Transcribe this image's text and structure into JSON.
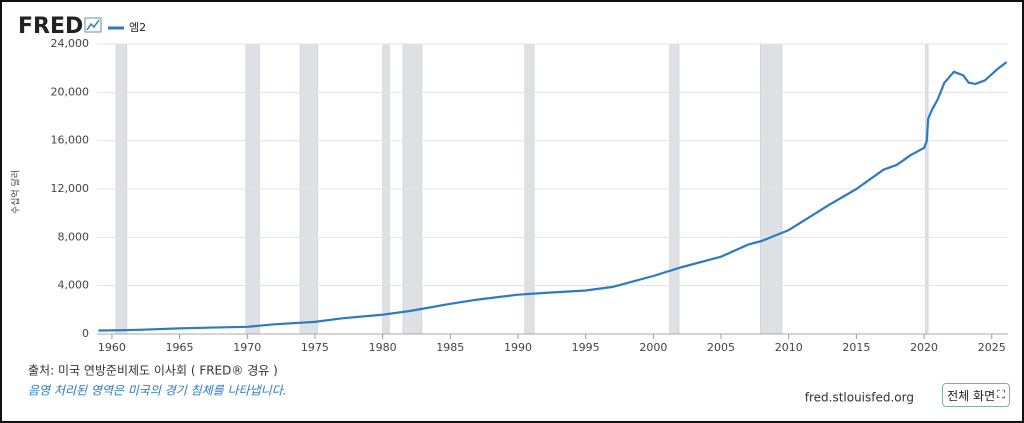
{
  "header": {
    "logo": "FRED"
  },
  "chart_data": {
    "type": "line",
    "y_label": "수십억 달러",
    "x": [
      1959,
      1960,
      1962,
      1965,
      1967,
      1970,
      1972,
      1975,
      1977,
      1980,
      1982,
      1985,
      1987,
      1990,
      1992,
      1995,
      1997,
      2000,
      2002,
      2005,
      2007,
      2008,
      2010,
      2012,
      2013,
      2015,
      2017,
      2018,
      2019,
      2020,
      2020.2,
      2020.3,
      2020.6,
      2021,
      2021.5,
      2022.2,
      2022.9,
      2023.3,
      2023.8,
      2024.5,
      2025,
      2025.5,
      2026.1
    ],
    "series": [
      {
        "name": "엠2",
        "color": "#2b7bc4",
        "values": [
          287,
          300,
          350,
          460,
          520,
          600,
          800,
          1000,
          1300,
          1600,
          1900,
          2500,
          2850,
          3250,
          3400,
          3600,
          3900,
          4800,
          5500,
          6400,
          7400,
          7700,
          8600,
          10000,
          10700,
          12000,
          13600,
          14000,
          14800,
          15400,
          16000,
          17800,
          18600,
          19400,
          20800,
          21700,
          21400,
          20800,
          20700,
          21000,
          21500,
          22000,
          22500
        ]
      }
    ],
    "recessions": [
      [
        1960.3,
        1961.1
      ],
      [
        1969.9,
        1970.9
      ],
      [
        1973.9,
        1975.2
      ],
      [
        1980.0,
        1980.5
      ],
      [
        1981.5,
        1982.9
      ],
      [
        1990.5,
        1991.2
      ],
      [
        2001.2,
        2001.9
      ],
      [
        2007.9,
        2009.5
      ],
      [
        2020.1,
        2020.3
      ]
    ],
    "xlim": [
      1958.9,
      2026.2
    ],
    "ylim": [
      0,
      24000
    ],
    "xticks": [
      1960,
      1965,
      1970,
      1975,
      1980,
      1985,
      1990,
      1995,
      2000,
      2005,
      2010,
      2015,
      2020,
      2025
    ],
    "yticks": [
      0,
      {
        "value": 4000,
        "label": "4,000"
      },
      {
        "value": 8000,
        "label": "8,000"
      },
      {
        "value": 12000,
        "label": "12,000"
      },
      {
        "value": 16000,
        "label": "16,000"
      },
      {
        "value": 20000,
        "label": "20,000"
      },
      {
        "value": 24000,
        "label": "24,000"
      }
    ],
    "grid": true
  },
  "footer": {
    "source": "출처: 미국 연방준비제도 이사회 ( FRED® 경유 )",
    "note": "음영 처리된 영역은 미국의 경기 침체를 나타냅니다.",
    "site": "fred.stlouisfed.org",
    "button": "전체 화면"
  }
}
